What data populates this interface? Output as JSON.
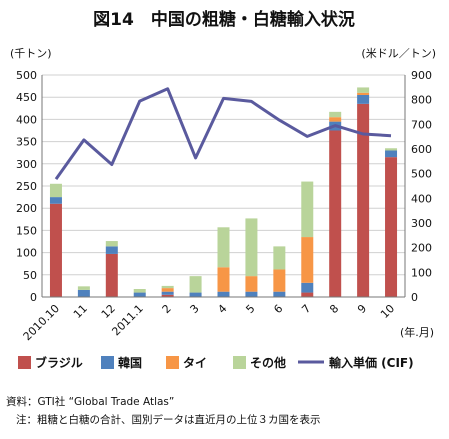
{
  "chart_data": {
    "type": "bar+line",
    "title": "図14　中国の粗糖・白糖輸入状況",
    "categories": [
      "2010.10",
      "11",
      "12",
      "2011.1",
      "2",
      "3",
      "4",
      "5",
      "6",
      "7",
      "8",
      "9",
      "10"
    ],
    "x_unit": "(年.月)",
    "y_left": {
      "unit": "(千トン)",
      "min": 0,
      "max": 500,
      "step": 50
    },
    "y_right": {
      "unit": "(米ドル／トン)",
      "min": 0,
      "max": 900,
      "step": 100
    },
    "series": [
      {
        "name": "ブラジル",
        "type": "bar",
        "axis": "left",
        "color": "#c0504d",
        "values": [
          210,
          0,
          97,
          0,
          5,
          0,
          0,
          0,
          0,
          10,
          375,
          435,
          315
        ]
      },
      {
        "name": "韓国",
        "type": "bar",
        "axis": "left",
        "color": "#4f81bd",
        "values": [
          15,
          16,
          17,
          10,
          7,
          10,
          12,
          12,
          12,
          22,
          20,
          20,
          15
        ]
      },
      {
        "name": "タイ",
        "type": "bar",
        "axis": "left",
        "color": "#f79646",
        "values": [
          0,
          0,
          0,
          0,
          8,
          0,
          55,
          35,
          50,
          103,
          10,
          5,
          0
        ]
      },
      {
        "name": "その他",
        "type": "bar",
        "axis": "left",
        "color": "#b9d49a",
        "values": [
          30,
          8,
          12,
          8,
          5,
          37,
          90,
          130,
          52,
          125,
          12,
          12,
          5
        ]
      },
      {
        "name": "輸入単価 (CIF)",
        "type": "line",
        "axis": "right",
        "color": "#5a5a9e",
        "values": [
          478,
          637,
          537,
          794,
          844,
          564,
          805,
          793,
          717,
          651,
          695,
          661,
          654
        ]
      }
    ]
  },
  "notes": {
    "source": "資料：GTI社 “Global Trade Atlas”",
    "note": "注：粗糖と白糖の合計、国別データは直近月の上位３カ国を表示"
  }
}
